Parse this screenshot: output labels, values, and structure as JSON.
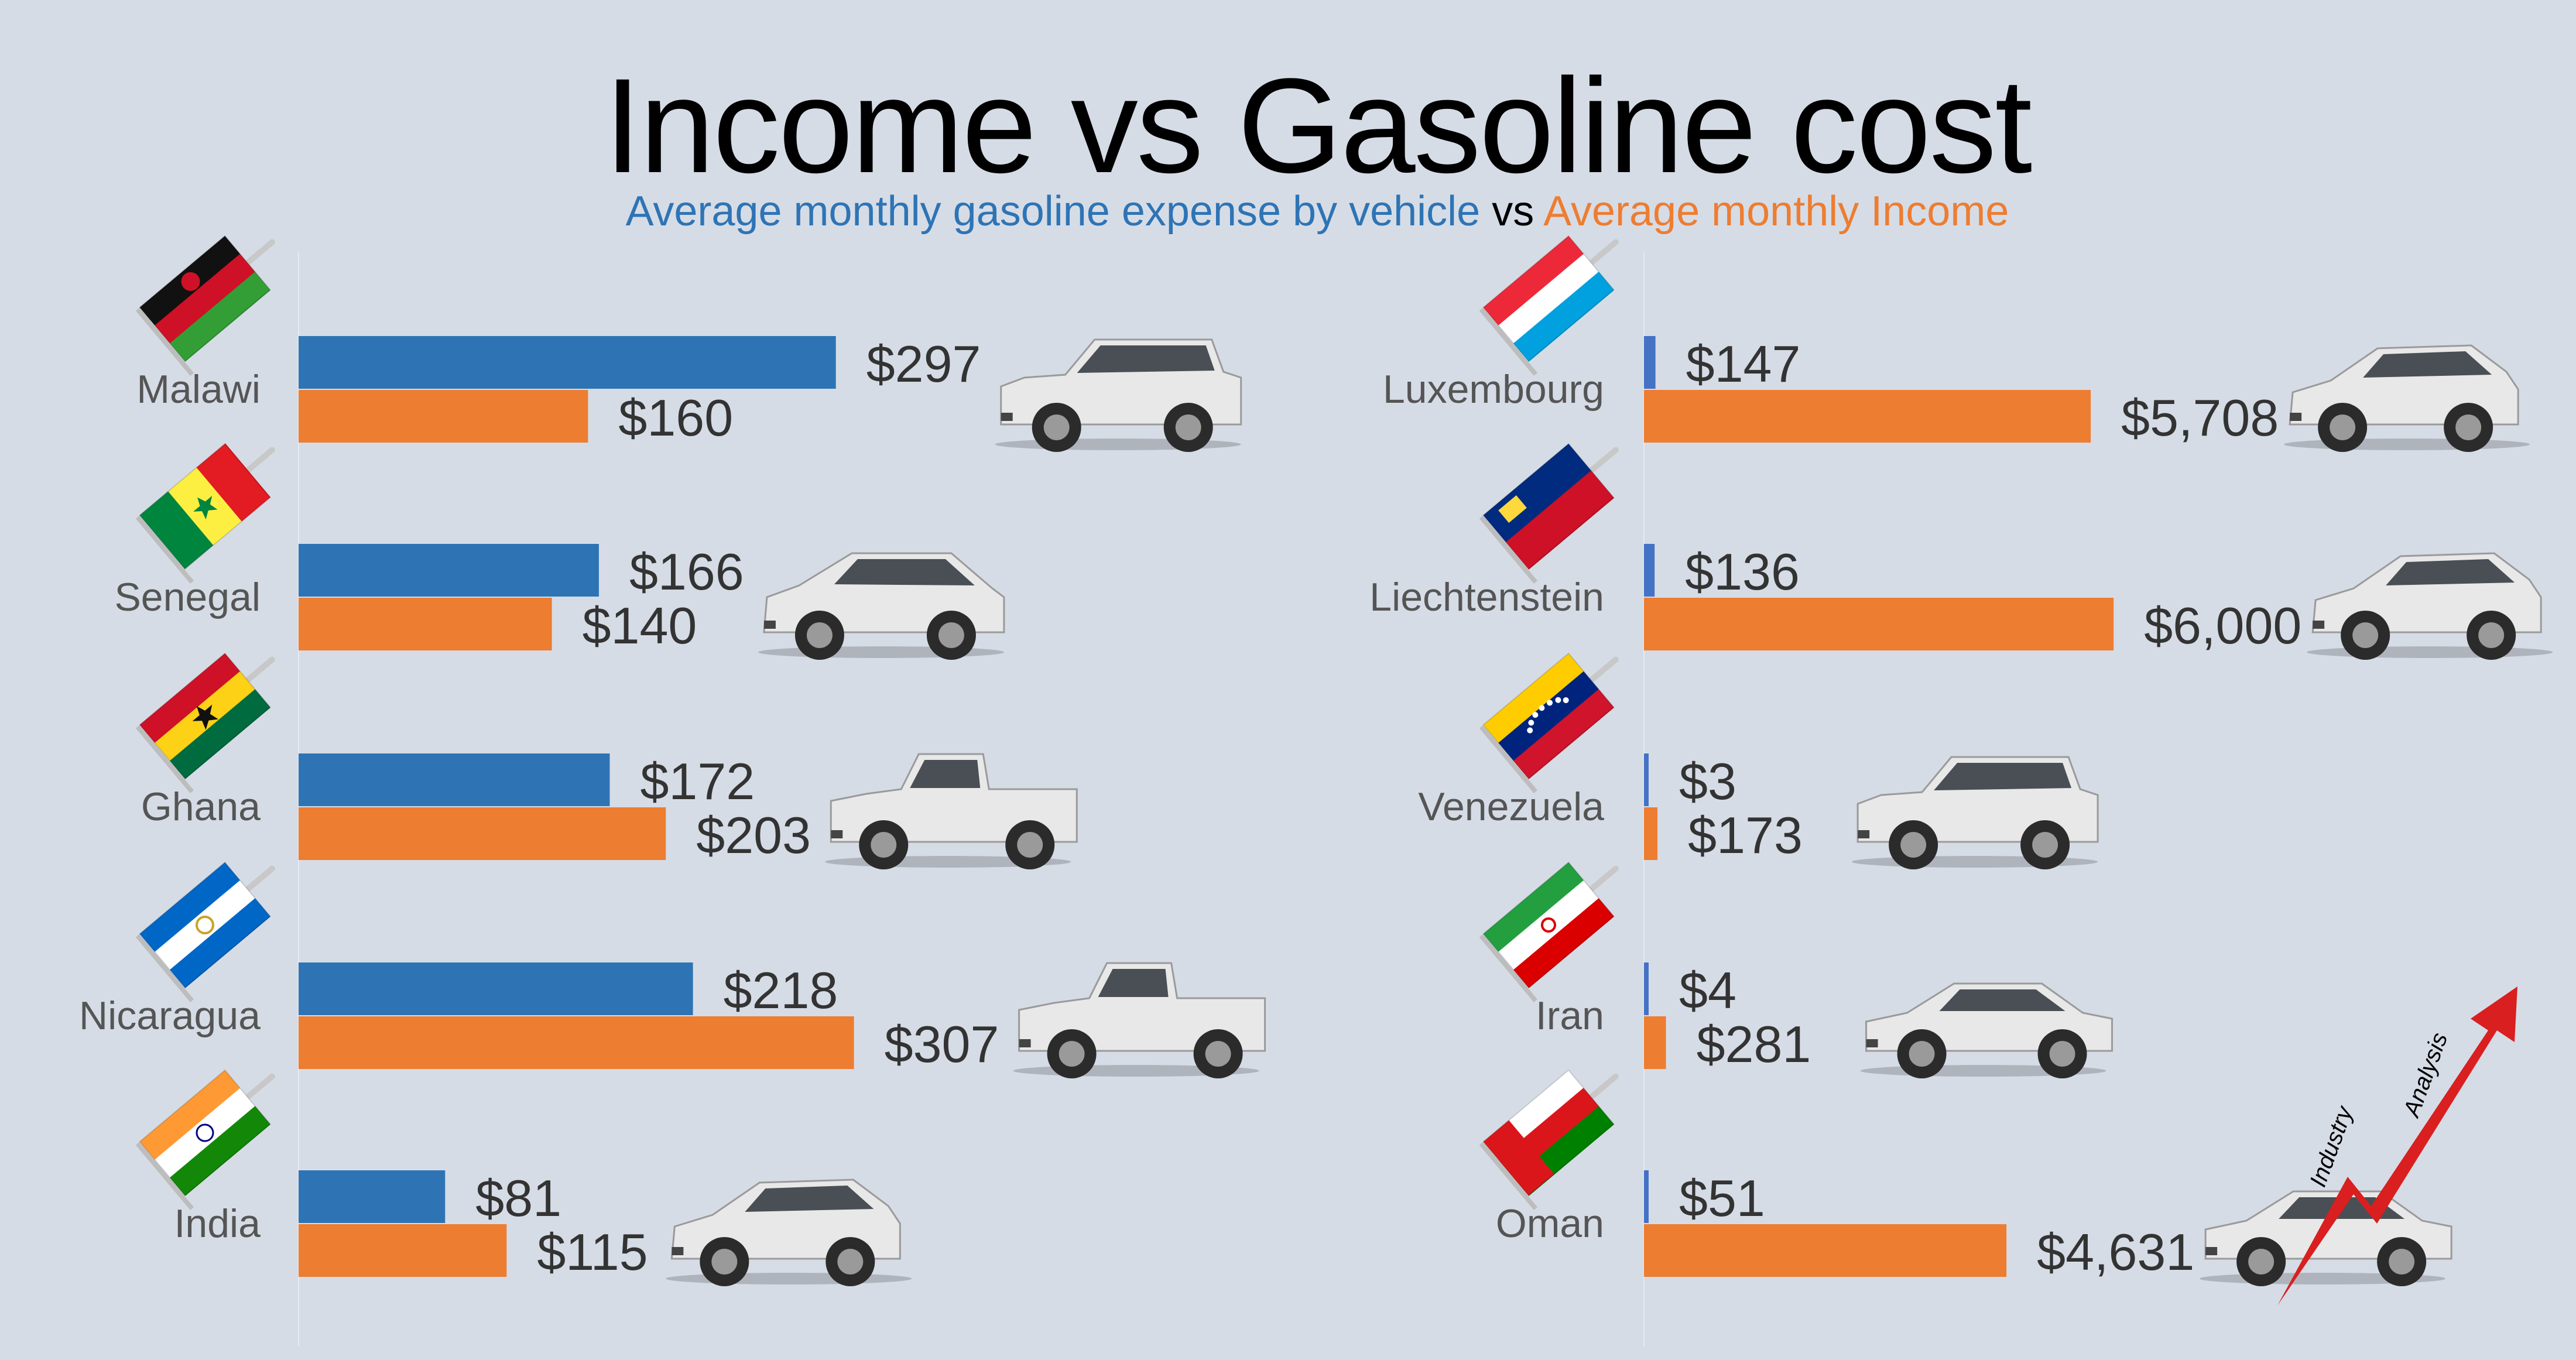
{
  "title": "Income vs Gasoline cost",
  "subtitle": {
    "part1": "Average monthly gasoline expense by vehicle",
    "part2": "vs",
    "part3": "Average monthly Income"
  },
  "colors": {
    "gasoline": "#2e74b5",
    "gasoline_small": "#4472c4",
    "income": "#ed7d31",
    "background": "#d6dce6"
  },
  "brand": {
    "word1": "Industry",
    "word2": "Analysis"
  },
  "chart_data": [
    {
      "type": "bar",
      "orientation": "horizontal",
      "categories": [
        "Malawi",
        "Senegal",
        "Ghana",
        "Nicaragua",
        "India"
      ],
      "series": [
        {
          "key": "gasoline",
          "values": [
            297,
            166,
            172,
            218,
            81
          ],
          "labels": [
            "$297",
            "$166",
            "$172",
            "$218",
            "$81"
          ]
        },
        {
          "key": "income",
          "values": [
            160,
            140,
            203,
            307,
            115
          ],
          "labels": [
            "$160",
            "$140",
            "$203",
            "$307",
            "$115"
          ]
        }
      ],
      "vehicles": [
        "suv",
        "crossover",
        "pickup-truck",
        "pickup-truck",
        "hatchback"
      ],
      "flags": [
        "malawi-flag",
        "senegal-flag",
        "ghana-flag",
        "nicaragua-flag",
        "india-flag"
      ]
    },
    {
      "type": "bar",
      "orientation": "horizontal",
      "categories": [
        "Luxembourg",
        "Liechtenstein",
        "Venezuela",
        "Iran",
        "Oman"
      ],
      "series": [
        {
          "key": "gasoline",
          "values": [
            147,
            136,
            3,
            4,
            51
          ],
          "labels": [
            "$147",
            "$136",
            "$3",
            "$4",
            "$51"
          ]
        },
        {
          "key": "income",
          "values": [
            5708,
            6000,
            173,
            281,
            4631
          ],
          "labels": [
            "$5,708",
            "$6,000",
            "$173",
            "$281",
            "$4,631"
          ]
        }
      ],
      "vehicles": [
        "hatchback",
        "hatchback",
        "suv",
        "sedan",
        "sedan"
      ],
      "flags": [
        "luxembourg-flag",
        "liechtenstein-flag",
        "venezuela-flag",
        "iran-flag",
        "oman-flag"
      ]
    }
  ]
}
